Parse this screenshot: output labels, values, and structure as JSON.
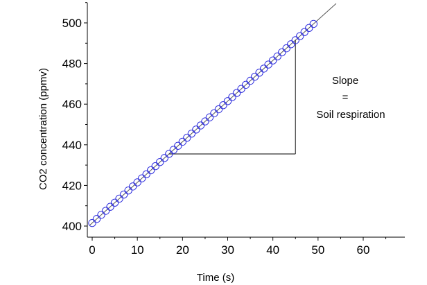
{
  "chart_data": {
    "type": "scatter",
    "xlabel": "Time (s)",
    "ylabel": "CO2 concentration (ppmv)",
    "xlim": [
      -1,
      69
    ],
    "ylim": [
      397,
      510
    ],
    "x_ticks": [
      0,
      10,
      20,
      30,
      40,
      50,
      60
    ],
    "y_ticks": [
      400,
      420,
      440,
      460,
      480,
      500
    ],
    "grid": false,
    "marker_color": "#3333dd",
    "series": [
      {
        "marker": "open-circle",
        "x": [
          0,
          1,
          2,
          3,
          4,
          5,
          6,
          7,
          8,
          9,
          10,
          11,
          12,
          13,
          14,
          15,
          16,
          17,
          18,
          19,
          20,
          21,
          22,
          23,
          24,
          25,
          26,
          27,
          28,
          29,
          30,
          31,
          32,
          33,
          34,
          35,
          36,
          37,
          38,
          39,
          40,
          41,
          42,
          43,
          44,
          45,
          46,
          47,
          48,
          49
        ],
        "y": [
          401.5,
          403.5,
          405.5,
          407.5,
          409.5,
          411.5,
          413.5,
          415.5,
          417.5,
          419.5,
          421.5,
          423.5,
          425.5,
          427.5,
          429.5,
          431.5,
          433.5,
          435.5,
          437.5,
          439.5,
          441.5,
          443.5,
          445.5,
          447.5,
          449.5,
          451.5,
          453.5,
          455.5,
          457.5,
          459.5,
          461.5,
          463.5,
          465.5,
          467.5,
          469.5,
          471.5,
          473.5,
          475.5,
          477.5,
          479.5,
          481.5,
          483.5,
          485.5,
          487.5,
          489.5,
          491.5,
          493.5,
          495.5,
          497.5,
          499.5
        ]
      }
    ],
    "fit_line": {
      "slope": 2.0,
      "intercept": 401.5,
      "x_range": [
        -0.5,
        54
      ]
    },
    "slope_triangle": {
      "x1": 17,
      "x2": 45,
      "y_base": 435.5
    },
    "annotations": [
      "Slope",
      "=",
      "Soil respiration"
    ]
  }
}
